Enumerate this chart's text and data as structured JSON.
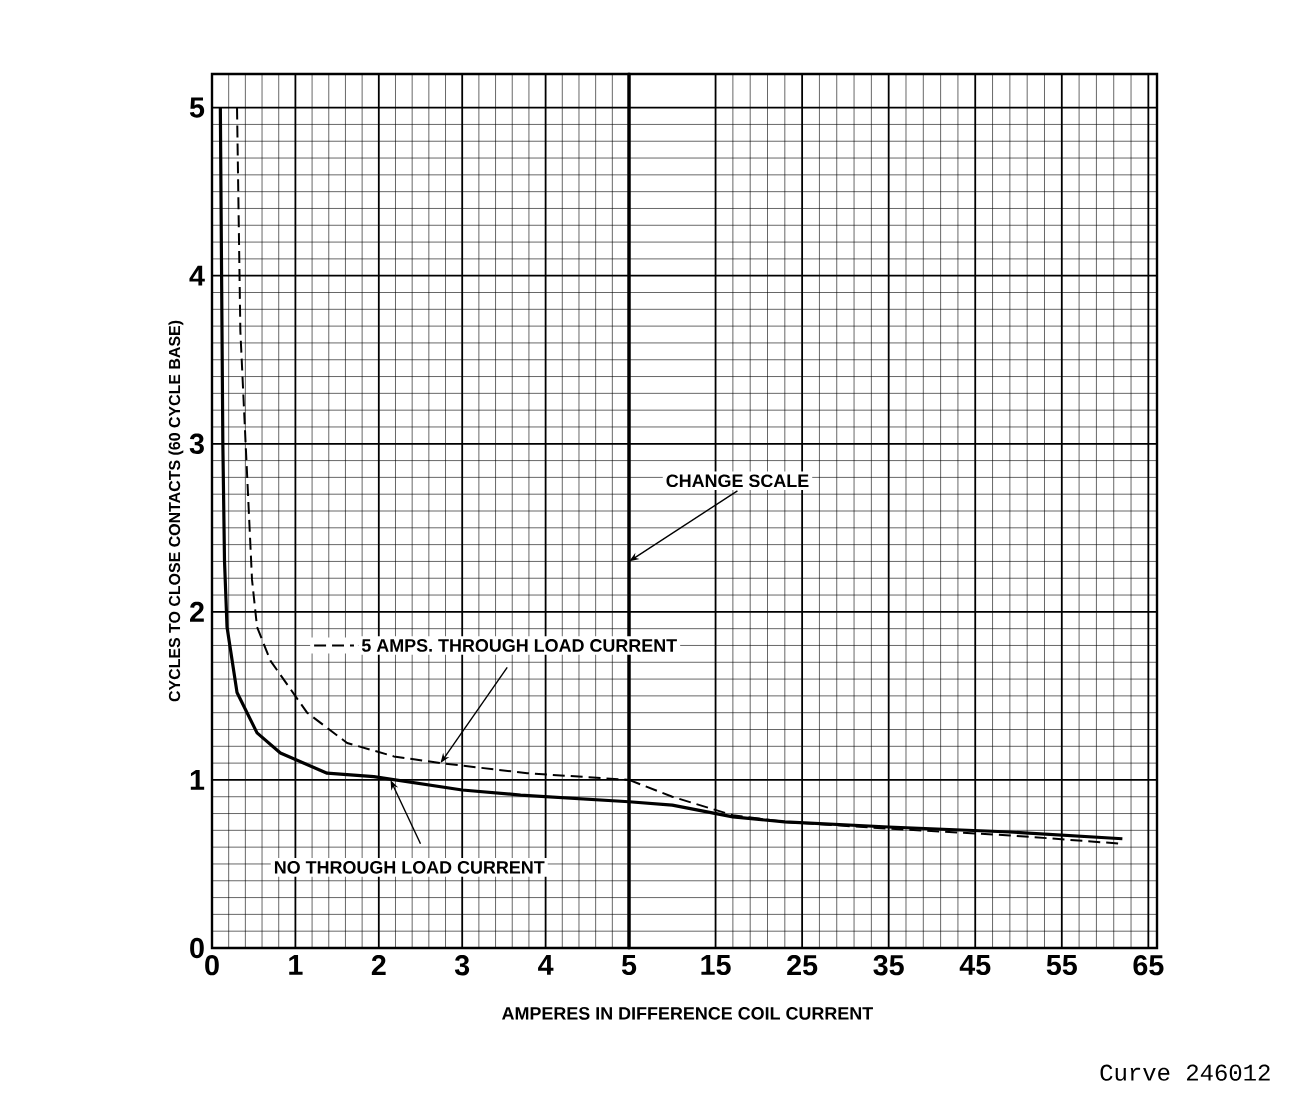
{
  "chart_data": [
    {
      "type": "line",
      "xlabel": "AMPERES IN DIFFERENCE COIL CURRENT",
      "ylabel": "CYCLES TO CLOSE CONTACTS (60 CYCLE BASE)",
      "xlim": [
        0,
        5
      ],
      "ylim": [
        0,
        5.2
      ],
      "xticks": [
        0,
        1,
        2,
        3,
        4,
        5
      ],
      "yticks": [
        0,
        1,
        2,
        3,
        4,
        5
      ],
      "grid": true,
      "ref_lines": [
        {
          "axis": "x",
          "value": 5,
          "label": "CHANGE SCALE"
        }
      ],
      "series": [
        {
          "name": "NO THROUGH LOAD CURRENT",
          "color": "#000000",
          "line_style": "solid",
          "x": [
            0.1,
            0.13,
            0.15,
            0.18,
            0.3,
            0.54,
            0.82,
            1.38,
            1.94,
            3,
            3.7,
            5
          ],
          "values": [
            5,
            3,
            2.3,
            1.91,
            1.52,
            1.28,
            1.16,
            1.04,
            1.02,
            0.94,
            0.91,
            0.87
          ]
        },
        {
          "name": "5 AMPS. THROUGH LOAD CURRENT",
          "color": "#000000",
          "line_style": "dashed",
          "x": [
            0.3,
            0.34,
            0.48,
            0.54,
            0.7,
            1.14,
            1.62,
            2.18,
            2.74,
            3.78,
            5
          ],
          "values": [
            5,
            3.67,
            2.19,
            1.91,
            1.71,
            1.4,
            1.22,
            1.14,
            1.1,
            1.04,
            1.0
          ]
        }
      ]
    },
    {
      "type": "line",
      "xlim": [
        5,
        66
      ],
      "ylim": [
        0,
        5.2
      ],
      "xticks": [
        15,
        25,
        35,
        45,
        55,
        65
      ],
      "yticks": [
        0,
        1,
        2,
        3,
        4,
        5
      ],
      "grid": true,
      "tick_labels": "x",
      "annotations": [
        "Curve 246012"
      ],
      "series": [
        {
          "color": "#000000",
          "line_style": "solid",
          "x": [
            5,
            10,
            17,
            23,
            35,
            49,
            62
          ],
          "values": [
            0.87,
            0.85,
            0.78,
            0.75,
            0.72,
            0.69,
            0.65
          ]
        },
        {
          "color": "#000000",
          "line_style": "dashed",
          "x": [
            5,
            10,
            17,
            23,
            35,
            49,
            62
          ],
          "values": [
            1.0,
            0.9,
            0.79,
            0.75,
            0.71,
            0.67,
            0.62
          ]
        }
      ]
    }
  ]
}
